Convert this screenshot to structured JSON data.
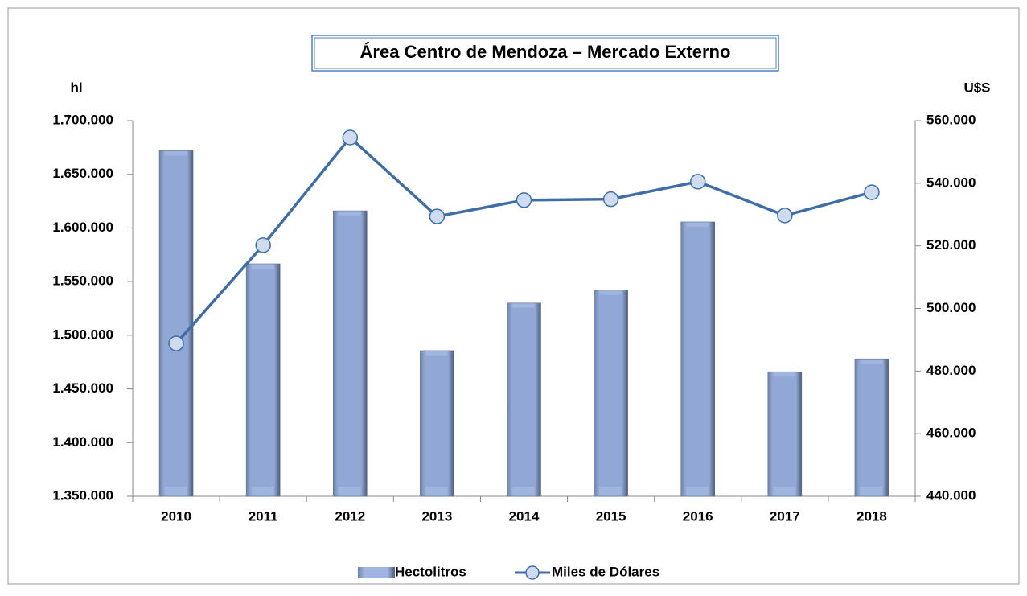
{
  "chart_data": {
    "type": "bar_line",
    "title": "Área Centro de Mendoza –  Mercado Externo",
    "y_label": "hl",
    "y2_label": "U$S",
    "categories": [
      "2010",
      "2011",
      "2012",
      "2013",
      "2014",
      "2015",
      "2016",
      "2017",
      "2018"
    ],
    "series": [
      {
        "name": "Hectolitros",
        "type": "bar",
        "color": "#8fa6d6",
        "values": [
          1672000,
          1566600,
          1616000,
          1485700,
          1530000,
          1542000,
          1605600,
          1466000,
          1478000
        ]
      },
      {
        "name": "Miles de Dólares",
        "type": "line",
        "axis": "y2",
        "color": "#3f6ea6",
        "values": [
          488800,
          520200,
          554600,
          529400,
          534600,
          534900,
          540500,
          529700,
          537100
        ]
      }
    ],
    "ylim": [
      1350000,
      1700000
    ],
    "yticks": [
      {
        "value": 1350000,
        "label": "1.350.000"
      },
      {
        "value": 1400000,
        "label": "1.400.000"
      },
      {
        "value": 1450000,
        "label": "1.450.000"
      },
      {
        "value": 1500000,
        "label": "1.500.000"
      },
      {
        "value": 1550000,
        "label": "1.550.000"
      },
      {
        "value": 1600000,
        "label": "1.600.000"
      },
      {
        "value": 1650000,
        "label": "1.650.000"
      },
      {
        "value": 1700000,
        "label": "1.700.000"
      }
    ],
    "y2lim": [
      440000,
      560000
    ],
    "y2ticks": [
      {
        "value": 440000,
        "label": "440.000"
      },
      {
        "value": 460000,
        "label": "460.000"
      },
      {
        "value": 480000,
        "label": "480.000"
      },
      {
        "value": 500000,
        "label": "500.000"
      },
      {
        "value": 520000,
        "label": "520.000"
      },
      {
        "value": 540000,
        "label": "540.000"
      },
      {
        "value": 560000,
        "label": "560.000"
      }
    ],
    "legend": "bottom"
  }
}
